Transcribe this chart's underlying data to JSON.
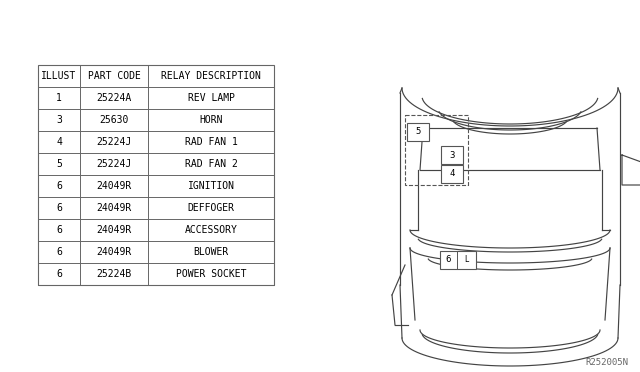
{
  "bg_color": "#ffffff",
  "table_headers": [
    "ILLUST",
    "PART CODE",
    "RELAY DESCRIPTION"
  ],
  "table_rows": [
    [
      "1",
      "25224A",
      "REV LAMP"
    ],
    [
      "3",
      "25630",
      "HORN"
    ],
    [
      "4",
      "25224J",
      "RAD FAN 1"
    ],
    [
      "5",
      "25224J",
      "RAD FAN 2"
    ],
    [
      "6",
      "24049R",
      "IGNITION"
    ],
    [
      "6",
      "24049R",
      "DEFFOGER"
    ],
    [
      "6",
      "24049R",
      "ACCESSORY"
    ],
    [
      "6",
      "24049R",
      "BLOWER"
    ],
    [
      "6",
      "25224B",
      "POWER SOCKET"
    ]
  ],
  "ref_code": "R252005N",
  "font_size": 7.0
}
